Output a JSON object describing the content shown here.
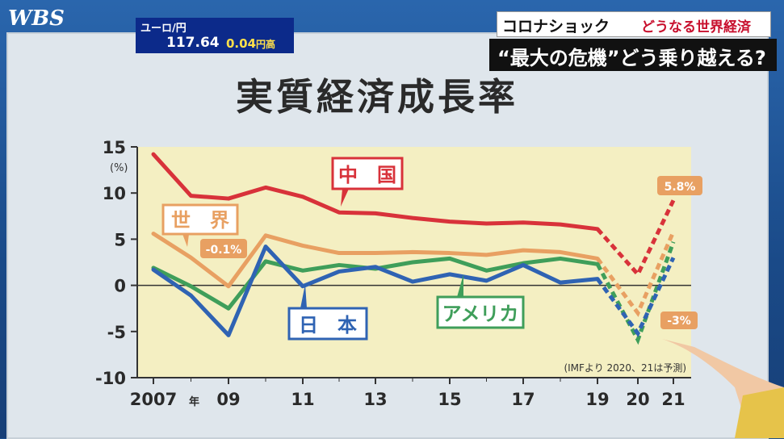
{
  "header": {
    "logo": "WBS",
    "ticker_pair": "ユーロ/円",
    "ticker_rate": "117.64",
    "ticker_change": "0.04",
    "ticker_change_unit": "円高",
    "headline_topic": "コロナショック",
    "headline_sub": "どうなる世界経済",
    "headline_main": "“最大の危機”どう乗り越える?"
  },
  "colors": {
    "china": "#d8323a",
    "world": "#e8a062",
    "us": "#3f9e5a",
    "japan": "#2f63b3",
    "plot_bg": "#f4efc2"
  },
  "chart_data": {
    "type": "line",
    "title": "実質経済成長率",
    "ylabel": "(%)",
    "ylim": [
      -10,
      15
    ],
    "yticks": [
      "15",
      "10",
      "5",
      "0",
      "-5",
      "-10"
    ],
    "xticks": [
      {
        "x": 2007,
        "label": "2007",
        "suffix": "年"
      },
      {
        "x": 2009,
        "label": "09"
      },
      {
        "x": 2011,
        "label": "11"
      },
      {
        "x": 2013,
        "label": "13"
      },
      {
        "x": 2015,
        "label": "15"
      },
      {
        "x": 2017,
        "label": "17"
      },
      {
        "x": 2019,
        "label": "19"
      },
      {
        "x": 2020,
        "label": "20"
      },
      {
        "x": 2021,
        "label": "21"
      }
    ],
    "x": [
      2007,
      2008,
      2009,
      2010,
      2011,
      2012,
      2013,
      2014,
      2015,
      2016,
      2017,
      2018,
      2019,
      2020,
      2021
    ],
    "forecast_from": 2019,
    "note": "(IMFより 2020、21は予測)",
    "series": [
      {
        "name": "中　国",
        "key": "china",
        "values": [
          14.2,
          9.7,
          9.4,
          10.6,
          9.6,
          7.9,
          7.8,
          7.3,
          6.9,
          6.7,
          6.8,
          6.6,
          6.1,
          1.2,
          9.2
        ]
      },
      {
        "name": "世　界",
        "key": "world",
        "values": [
          5.6,
          3.0,
          -0.1,
          5.4,
          4.3,
          3.5,
          3.5,
          3.6,
          3.5,
          3.3,
          3.8,
          3.6,
          2.9,
          -3.0,
          5.8
        ]
      },
      {
        "name": "アメリカ",
        "key": "us",
        "values": [
          1.9,
          -0.1,
          -2.5,
          2.6,
          1.6,
          2.2,
          1.8,
          2.5,
          2.9,
          1.6,
          2.4,
          2.9,
          2.3,
          -5.9,
          4.7
        ]
      },
      {
        "name": "日　本",
        "key": "japan",
        "values": [
          1.7,
          -1.1,
          -5.4,
          4.2,
          -0.1,
          1.5,
          2.0,
          0.4,
          1.2,
          0.5,
          2.2,
          0.3,
          0.7,
          -5.2,
          3.0
        ]
      }
    ],
    "annotations": [
      {
        "series": "world",
        "x": 2009,
        "text": "-0.1%"
      },
      {
        "series": "world",
        "x": 2020,
        "text": "-3%"
      },
      {
        "series": "world",
        "x": 2021,
        "text": "5.8%"
      }
    ]
  }
}
